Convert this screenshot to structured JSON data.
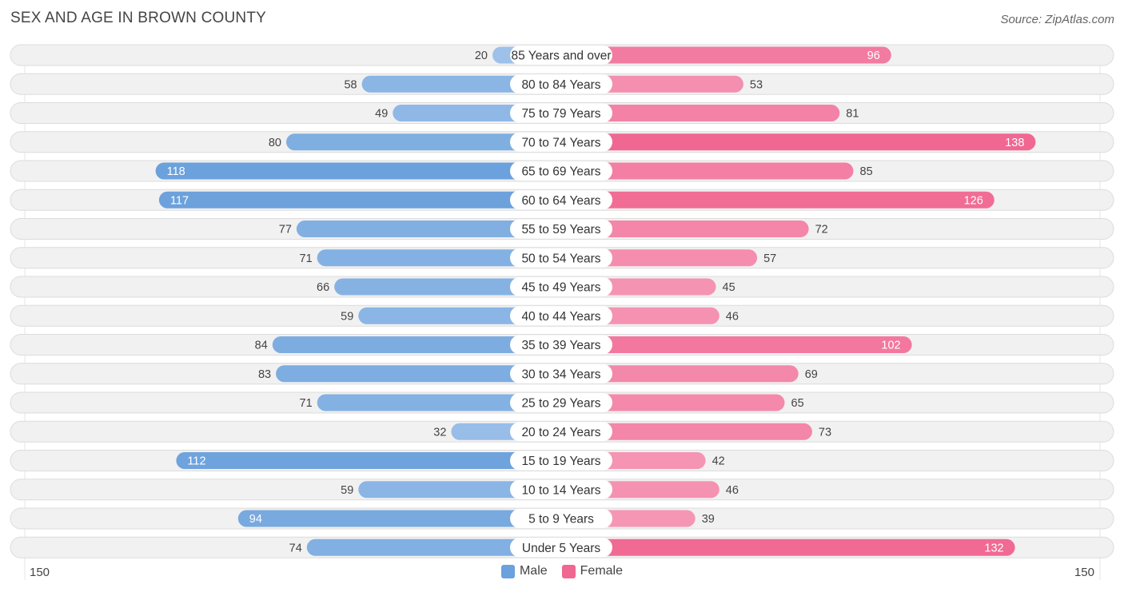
{
  "title": "SEX AND AGE IN BROWN COUNTY",
  "source": "Source: ZipAtlas.com",
  "colors": {
    "male_dark": "#6ba1dc",
    "male_light": "#a9c8ed",
    "female_dark": "#f06792",
    "female_light": "#f7a8c2",
    "row_bg": "#f1f1f1",
    "row_border": "#dcdcdc"
  },
  "legend": {
    "male": "Male",
    "female": "Female"
  },
  "axis": {
    "left_label": "150",
    "right_label": "150"
  },
  "chart_data": {
    "type": "bar",
    "orientation": "horizontal-diverging",
    "axis_max": 150,
    "categories": [
      "85 Years and over",
      "80 to 84 Years",
      "75 to 79 Years",
      "70 to 74 Years",
      "65 to 69 Years",
      "60 to 64 Years",
      "55 to 59 Years",
      "50 to 54 Years",
      "45 to 49 Years",
      "40 to 44 Years",
      "35 to 39 Years",
      "30 to 34 Years",
      "25 to 29 Years",
      "20 to 24 Years",
      "15 to 19 Years",
      "10 to 14 Years",
      "5 to 9 Years",
      "Under 5 Years"
    ],
    "series": [
      {
        "name": "Male",
        "values": [
          20,
          58,
          49,
          80,
          118,
          117,
          77,
          71,
          66,
          59,
          84,
          83,
          71,
          32,
          112,
          59,
          94,
          74
        ]
      },
      {
        "name": "Female",
        "values": [
          96,
          53,
          81,
          138,
          85,
          126,
          72,
          57,
          45,
          46,
          102,
          69,
          65,
          73,
          42,
          46,
          39,
          132
        ]
      }
    ]
  }
}
